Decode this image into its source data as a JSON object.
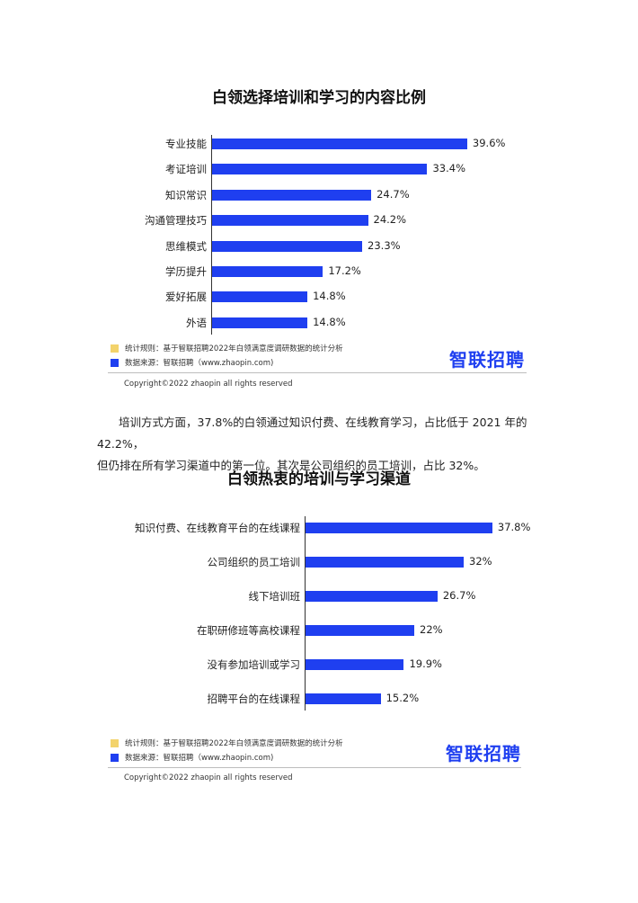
{
  "colors": {
    "bar": "#1f3ff0",
    "legend_rule": "#f3d36b",
    "legend_source": "#1f3ff0",
    "brand": "#1f3ff0"
  },
  "chart1": {
    "title": "白领选择培训和学习的内容比例",
    "footer": {
      "rule": "统计规则：基于智联招聘2022年白领满意度调研数据的统计分析",
      "source": "数据来源：智联招聘（www.zhaopin.com)",
      "brand": "智联招聘",
      "copyright": "Copyright©2022 zhaopin all rights reserved"
    }
  },
  "paragraph": {
    "line1": "培训方式方面，37.8%的白领通过知识付费、在线教育学习，占比低于 2021 年的 42.2%，",
    "line2": "但仍排在所有学习渠道中的第一位。其次是公司组织的员工培训，占比 32%。"
  },
  "chart2": {
    "title": "白领热衷的培训与学习渠道",
    "footer": {
      "rule": "统计规则：基于智联招聘2022年白领满意度调研数据的统计分析",
      "source": "数据来源：智联招聘（www.zhaopin.com)",
      "brand": "智联招聘",
      "copyright": "Copyright©2022 zhaopin all rights reserved"
    }
  },
  "chart_data": [
    {
      "type": "bar",
      "orientation": "horizontal",
      "title": "白领选择培训和学习的内容比例",
      "categories": [
        "专业技能",
        "考证培训",
        "知识常识",
        "沟通管理技巧",
        "思维模式",
        "学历提升",
        "爱好拓展",
        "外语"
      ],
      "values": [
        39.6,
        33.4,
        24.7,
        24.2,
        23.3,
        17.2,
        14.8,
        14.8
      ],
      "value_labels": [
        "39.6%",
        "33.4%",
        "24.7%",
        "24.2%",
        "23.3%",
        "17.2%",
        "14.8%",
        "14.8%"
      ],
      "unit": "%",
      "grid": false,
      "legend": "none"
    },
    {
      "type": "bar",
      "orientation": "horizontal",
      "title": "白领热衷的培训与学习渠道",
      "categories": [
        "知识付费、在线教育平台的在线课程",
        "公司组织的员工培训",
        "线下培训班",
        "在职研修班等高校课程",
        "没有参加培训或学习",
        "招聘平台的在线课程"
      ],
      "values": [
        37.8,
        32,
        26.7,
        22,
        19.9,
        15.2
      ],
      "value_labels": [
        "37.8%",
        "32%",
        "26.7%",
        "22%",
        "19.9%",
        "15.2%"
      ],
      "unit": "%",
      "grid": false,
      "legend": "none"
    }
  ]
}
